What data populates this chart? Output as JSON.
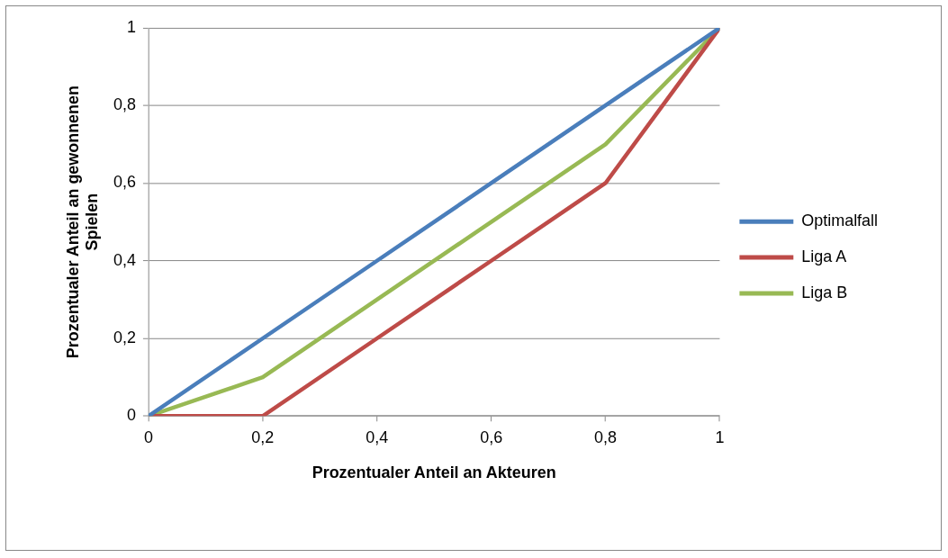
{
  "chart_data": {
    "type": "line",
    "xlabel": "Prozentualer Anteil an Akteuren",
    "ylabel": "Prozentualer Anteil an gewonnenen Spielen",
    "x": [
      0,
      0.2,
      0.4,
      0.6,
      0.8,
      1
    ],
    "series": [
      {
        "name": "Optimalfall",
        "color": "#4a7ebb",
        "values": [
          0,
          0.2,
          0.4,
          0.6,
          0.8,
          1
        ]
      },
      {
        "name": "Liga A",
        "color": "#be4b48",
        "values": [
          0,
          0,
          0.2,
          0.4,
          0.6,
          1
        ]
      },
      {
        "name": "Liga B",
        "color": "#98b954",
        "values": [
          0,
          0.1,
          0.3,
          0.5,
          0.7,
          1
        ]
      }
    ],
    "xlim": [
      0,
      1
    ],
    "xticks": [
      0,
      {
        "value": 0.2,
        "label": "0,2"
      },
      {
        "value": 0.4,
        "label": "0,4"
      },
      {
        "value": 0.6,
        "label": "0,6"
      },
      {
        "value": 0.8,
        "label": "0,8"
      },
      1
    ],
    "ylim": [
      0,
      1
    ],
    "yticks": [
      0,
      {
        "value": 0.2,
        "label": "0,2"
      },
      {
        "value": 0.4,
        "label": "0,4"
      },
      {
        "value": 0.6,
        "label": "0,6"
      },
      {
        "value": 0.8,
        "label": "0,8"
      },
      1
    ],
    "grid": "y",
    "legend": "right",
    "marker": "none",
    "line_style": "solid"
  }
}
